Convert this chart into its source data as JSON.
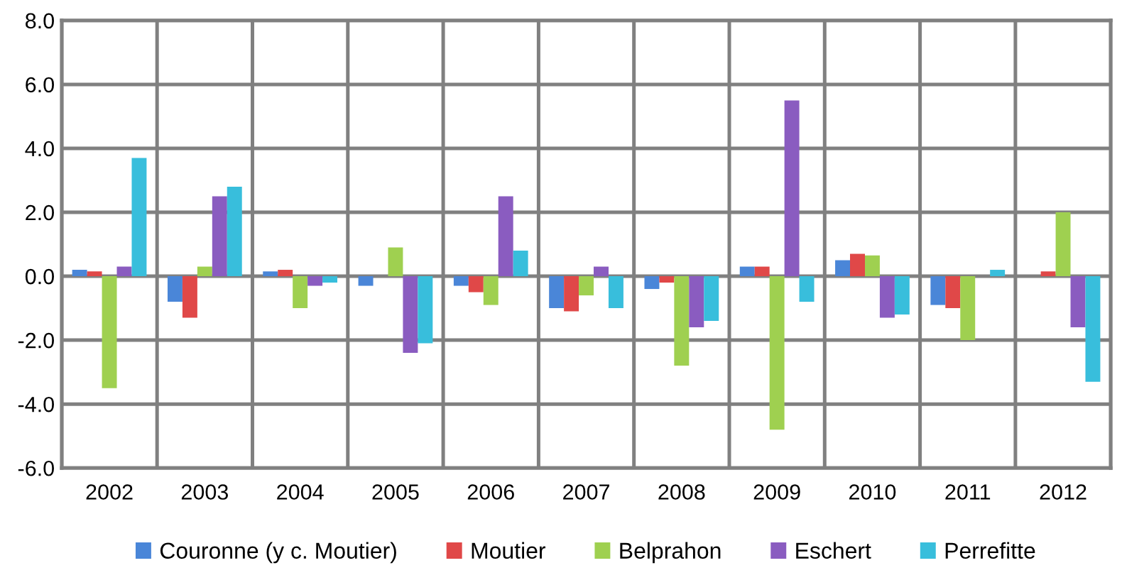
{
  "chart_data": {
    "type": "bar",
    "categories": [
      "2002",
      "2003",
      "2004",
      "2005",
      "2006",
      "2007",
      "2008",
      "2009",
      "2010",
      "2011",
      "2012"
    ],
    "series": [
      {
        "name": "Couronne (y c. Moutier)",
        "color": "#4a86d8",
        "values": [
          0.2,
          -0.8,
          0.15,
          -0.3,
          -0.3,
          -1.0,
          -0.4,
          0.3,
          0.5,
          -0.9,
          0.0
        ]
      },
      {
        "name": "Moutier",
        "color": "#e04848",
        "values": [
          0.15,
          -1.3,
          0.2,
          0.0,
          -0.5,
          -1.1,
          -0.2,
          0.3,
          0.7,
          -1.0,
          0.15
        ]
      },
      {
        "name": "Belprahon",
        "color": "#9fd050",
        "values": [
          -3.5,
          0.3,
          -1.0,
          0.9,
          -0.9,
          -0.6,
          -2.8,
          -4.8,
          0.65,
          -2.0,
          2.0
        ]
      },
      {
        "name": "Eschert",
        "color": "#8a5cc0",
        "values": [
          0.3,
          2.5,
          -0.3,
          -2.4,
          2.5,
          0.3,
          -1.6,
          5.5,
          -1.3,
          0.0,
          -1.6
        ]
      },
      {
        "name": "Perrefitte",
        "color": "#38bedc",
        "values": [
          3.7,
          2.8,
          -0.2,
          -2.1,
          0.8,
          -1.0,
          -1.4,
          -0.8,
          -1.2,
          0.2,
          -3.3
        ]
      }
    ],
    "ylim": [
      -6,
      8
    ],
    "yticks": [
      {
        "value": -6,
        "label": "-6.0"
      },
      {
        "value": -4,
        "label": "-4.0"
      },
      {
        "value": -2,
        "label": "-2.0"
      },
      {
        "value": 0,
        "label": "0.0"
      },
      {
        "value": 2,
        "label": "2.0"
      },
      {
        "value": 4,
        "label": "4.0"
      },
      {
        "value": 6,
        "label": "6.0"
      },
      {
        "value": 8,
        "label": "8.0"
      }
    ],
    "grid": true,
    "legend": "bottom"
  }
}
